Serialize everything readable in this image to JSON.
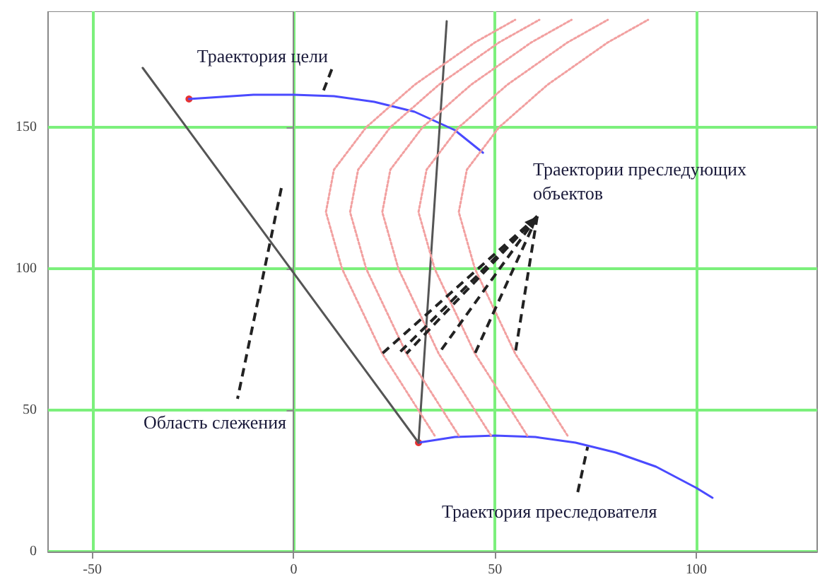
{
  "chart_data": {
    "type": "line",
    "xlim": [
      -61,
      130
    ],
    "ylim": [
      0,
      191
    ],
    "xticks": [
      -50,
      0,
      50,
      100
    ],
    "yticks": [
      0,
      50,
      100,
      150
    ],
    "grid": true,
    "series": [
      {
        "color": "#4a4aff",
        "line_style": "solid",
        "x": [
          -26,
          -10,
          0,
          10,
          20,
          30,
          40,
          47
        ],
        "values": [
          160,
          161.5,
          161.5,
          161,
          159,
          155.5,
          149,
          141
        ]
      },
      {
        "color": "#4a4aff",
        "line_style": "solid",
        "x": [
          31,
          40,
          50,
          60,
          70,
          80,
          90,
          100,
          104
        ],
        "values": [
          38.5,
          40.5,
          41,
          40.5,
          38.5,
          35,
          30,
          22.5,
          19
        ]
      },
      {
        "color": "#555555",
        "line_style": "solid",
        "x": [
          -37.5,
          31
        ],
        "values": [
          171,
          38.5
        ]
      },
      {
        "color": "#555555",
        "line_style": "solid",
        "x": [
          31,
          38
        ],
        "values": [
          38.5,
          187.5
        ]
      },
      {
        "color": "#f2a0a0",
        "line_style": "dotted",
        "x": [
          35,
          22,
          12,
          8,
          10,
          18,
          30,
          45,
          55
        ],
        "values": [
          41,
          70,
          100,
          120,
          135,
          150,
          165,
          180,
          188
        ]
      },
      {
        "color": "#f2a0a0",
        "line_style": "dotted",
        "x": [
          41,
          28,
          18,
          14,
          16,
          24,
          36,
          51,
          61
        ],
        "values": [
          41,
          70,
          100,
          120,
          135,
          150,
          165,
          180,
          188
        ]
      },
      {
        "color": "#f2a0a0",
        "line_style": "dotted",
        "x": [
          49,
          36,
          26,
          22,
          24,
          32,
          44,
          59,
          69
        ],
        "values": [
          41,
          70,
          100,
          120,
          135,
          150,
          165,
          180,
          188
        ]
      },
      {
        "color": "#f2a0a0",
        "line_style": "dotted",
        "x": [
          58,
          45,
          35,
          31,
          33,
          41,
          53,
          68,
          78
        ],
        "values": [
          41,
          70,
          100,
          120,
          135,
          150,
          165,
          180,
          188
        ]
      },
      {
        "color": "#f2a0a0",
        "line_style": "dotted",
        "x": [
          68,
          55,
          45,
          41,
          43,
          51,
          63,
          78,
          88
        ],
        "values": [
          41,
          70,
          100,
          120,
          135,
          150,
          165,
          180,
          188
        ]
      },
      {
        "type": "scatter",
        "marker": "circle",
        "color": "#e00000",
        "x": [
          -26
        ],
        "values": [
          160
        ]
      },
      {
        "type": "scatter",
        "marker": "circle",
        "color": "#e00000",
        "x": [
          31
        ],
        "values": [
          38.5
        ]
      }
    ],
    "annotations": [
      {
        "text": "Траектория цели",
        "x": 7,
        "y": 161.5
      },
      {
        "text": "Траектории преследующих объектов",
        "x": 26,
        "y": 70
      },
      "Область слежения",
      {
        "text": "Траектория преследователя",
        "x": 73,
        "y": 37
      }
    ]
  }
}
